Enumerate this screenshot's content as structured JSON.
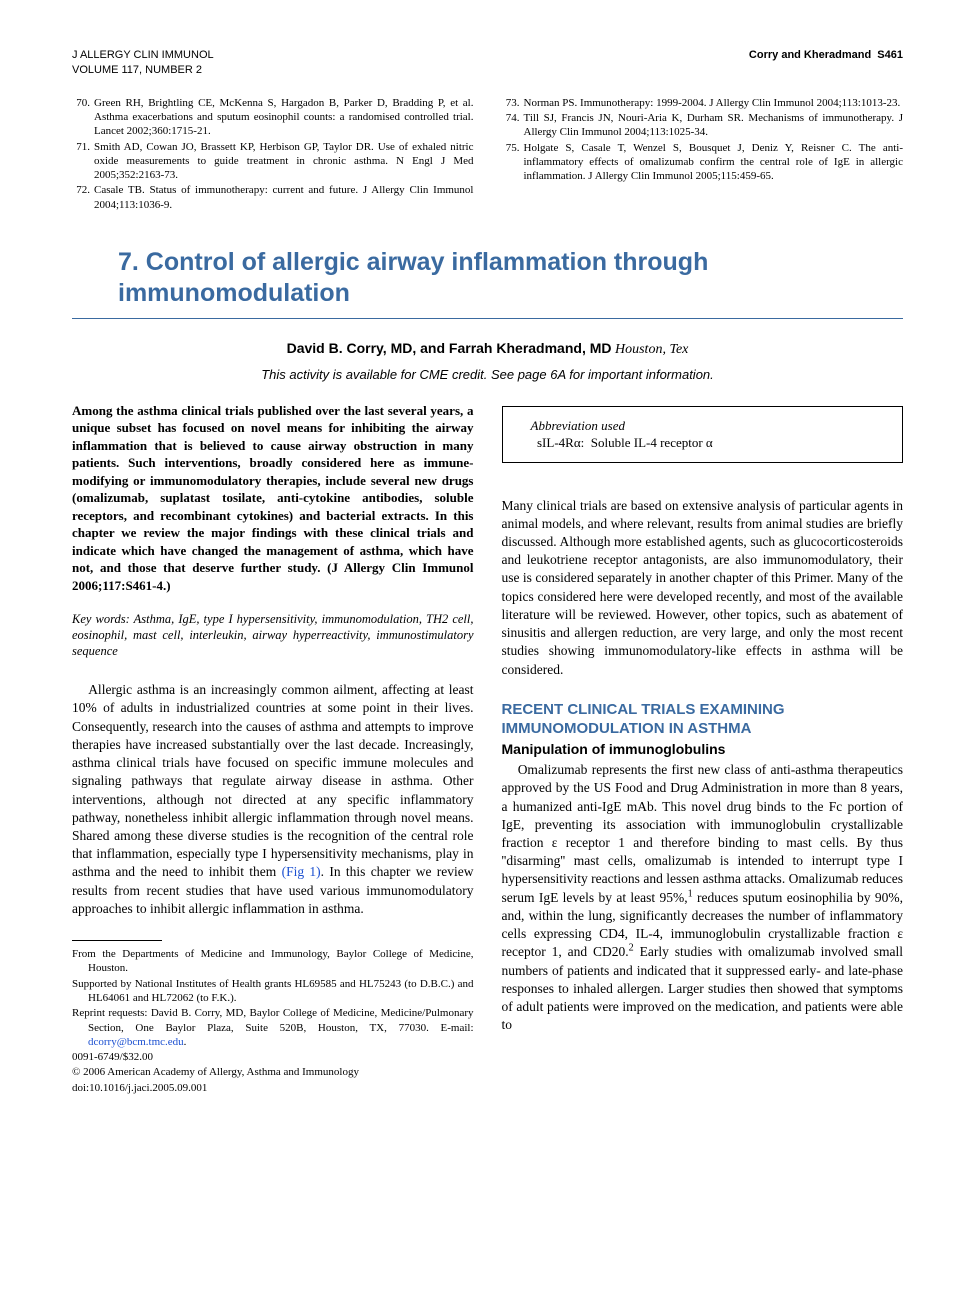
{
  "header": {
    "journal_line1": "J ALLERGY CLIN IMMUNOL",
    "journal_line2": "VOLUME 117, NUMBER 2",
    "running_head": "Corry and Kheradmand",
    "page": "S461"
  },
  "references_left": [
    {
      "num": "70.",
      "text": "Green RH, Brightling CE, McKenna S, Hargadon B, Parker D, Bradding P, et al. Asthma exacerbations and sputum eosinophil counts: a randomised controlled trial. Lancet 2002;360:1715-21."
    },
    {
      "num": "71.",
      "text": "Smith AD, Cowan JO, Brassett KP, Herbison GP, Taylor DR. Use of exhaled nitric oxide measurements to guide treatment in chronic asthma. N Engl J Med 2005;352:2163-73."
    },
    {
      "num": "72.",
      "text": "Casale TB. Status of immunotherapy: current and future. J Allergy Clin Immunol 2004;113:1036-9."
    }
  ],
  "references_right": [
    {
      "num": "73.",
      "text": "Norman PS. Immunotherapy: 1999-2004. J Allergy Clin Immunol 2004;113:1013-23."
    },
    {
      "num": "74.",
      "text": "Till SJ, Francis JN, Nouri-Aria K, Durham SR. Mechanisms of immunotherapy. J Allergy Clin Immunol 2004;113:1025-34."
    },
    {
      "num": "75.",
      "text": "Holgate S, Casale T, Wenzel S, Bousquet J, Deniz Y, Reisner C. The anti-inflammatory effects of omalizumab confirm the central role of IgE in allergic inflammation. J Allergy Clin Immunol 2005;115:459-65."
    }
  ],
  "article": {
    "title": "7. Control of allergic airway inflammation through immunomodulation",
    "authors_names": "David B. Corry, MD, and Farrah Kheradmand, MD",
    "authors_loc": "Houston, Tex",
    "cme": "This activity is available for CME credit. See page 6A for important information.",
    "abstract": "Among the asthma clinical trials published over the last several years, a unique subset has focused on novel means for inhibiting the airway inflammation that is believed to cause airway obstruction in many patients. Such interventions, broadly considered here as immune-modifying or immunomodulatory therapies, include several new drugs (omalizumab, suplatast tosilate, anti-cytokine antibodies, soluble receptors, and recombinant cytokines) and bacterial extracts. In this chapter we review the major findings with these clinical trials and indicate which have changed the management of asthma, which have not, and those that deserve further study. (J Allergy Clin Immunol 2006;117:S461-4.)",
    "keywords_label": "Key words:",
    "keywords_text": " Asthma, IgE, type I hypersensitivity, immunomodulation, TH2 cell, eosinophil, mast cell, interleukin, airway hyperreactivity, immunostimulatory sequence",
    "intro_p1a": "Allergic asthma is an increasingly common ailment, affecting at least 10% of adults in industrialized countries at some point in their lives. Consequently, research into the causes of asthma and attempts to improve therapies have increased substantially over the last decade. Increasingly, asthma clinical trials have focused on specific immune molecules and signaling pathways that regulate airway disease in asthma. Other interventions, although not directed at any specific inflammatory pathway, nonetheless inhibit allergic inflammation through novel means. Shared among these diverse studies is the recognition of the central role that inflammation, especially type I hypersensitivity mechanisms, play in asthma and the need to inhibit them ",
    "fig_link": "(Fig 1)",
    "intro_p1b": ". In this chapter we review results from recent studies that have used various immunomodulatory approaches to inhibit allergic inflammation in asthma.",
    "abbrev_title": "Abbreviation used",
    "abbrev_item_key": "sIL-4Rα:",
    "abbrev_item_val": "Soluble IL-4 receptor α",
    "intro_p2": "Many clinical trials are based on extensive analysis of particular agents in animal models, and where relevant, results from animal studies are briefly discussed. Although more established agents, such as glucocorticosteroids and leukotriene receptor antagonists, are also immunomodulatory, their use is considered separately in another chapter of this Primer. Many of the topics considered here were developed recently, and most of the available literature will be reviewed. However, other topics, such as abatement of sinusitis and allergen reduction, are very large, and only the most recent studies showing immunomodulatory-like effects in asthma will be considered.",
    "section_h1": "RECENT CLINICAL TRIALS EXAMINING IMMUNOMODULATION IN ASTHMA",
    "section_h2": "Manipulation of immunoglobulins",
    "body_p1a": "Omalizumab represents the first new class of anti-asthma therapeutics approved by the US Food and Drug Administration in more than 8 years, a humanized anti-IgE mAb. This novel drug binds to the Fc portion of IgE, preventing its association with immunoglobulin crystallizable fraction ε receptor 1 and therefore binding to mast cells. By thus ''disarming'' mast cells, omalizumab is intended to interrupt type I hypersensitivity reactions and lessen asthma attacks. Omalizumab reduces serum IgE levels by at least 95%,",
    "sup1": "1",
    "body_p1b": " reduces sputum eosinophilia by 90%, and, within the lung, significantly decreases the number of inflammatory cells expressing CD4, IL-4, immunoglobulin crystallizable fraction ε receptor 1, and CD20.",
    "sup2": "2",
    "body_p1c": " Early studies with omalizumab involved small numbers of patients and indicated that it suppressed early- and late-phase responses to inhaled allergen. Larger studies then showed that symptoms of adult patients were improved on the medication, and patients were able to"
  },
  "footnotes": {
    "f1": "From the Departments of Medicine and Immunology, Baylor College of Medicine, Houston.",
    "f2": "Supported by National Institutes of Health grants HL69585 and HL75243 (to D.B.C.) and HL64061 and HL72062 (to F.K.).",
    "f3a": "Reprint requests: David B. Corry, MD, Baylor College of Medicine, Medicine/Pulmonary Section, One Baylor Plaza, Suite 520B, Houston, TX, 77030. E-mail: ",
    "f3_email": "dcorry@bcm.tmc.edu",
    "f3b": ".",
    "f4": "0091-6749/$32.00",
    "f5": "© 2006 American Academy of Allergy, Asthma and Immunology",
    "f6": "doi:10.1016/j.jaci.2005.09.001"
  },
  "colors": {
    "heading_blue": "#3a6aa0",
    "link_blue": "#1a4fd1",
    "text": "#000000",
    "background": "#ffffff"
  },
  "typography": {
    "body_family": "Times New Roman, serif",
    "heading_family": "Arial, Helvetica, sans-serif",
    "title_fontsize_pt": 19,
    "body_fontsize_pt": 10,
    "refs_fontsize_pt": 8
  }
}
